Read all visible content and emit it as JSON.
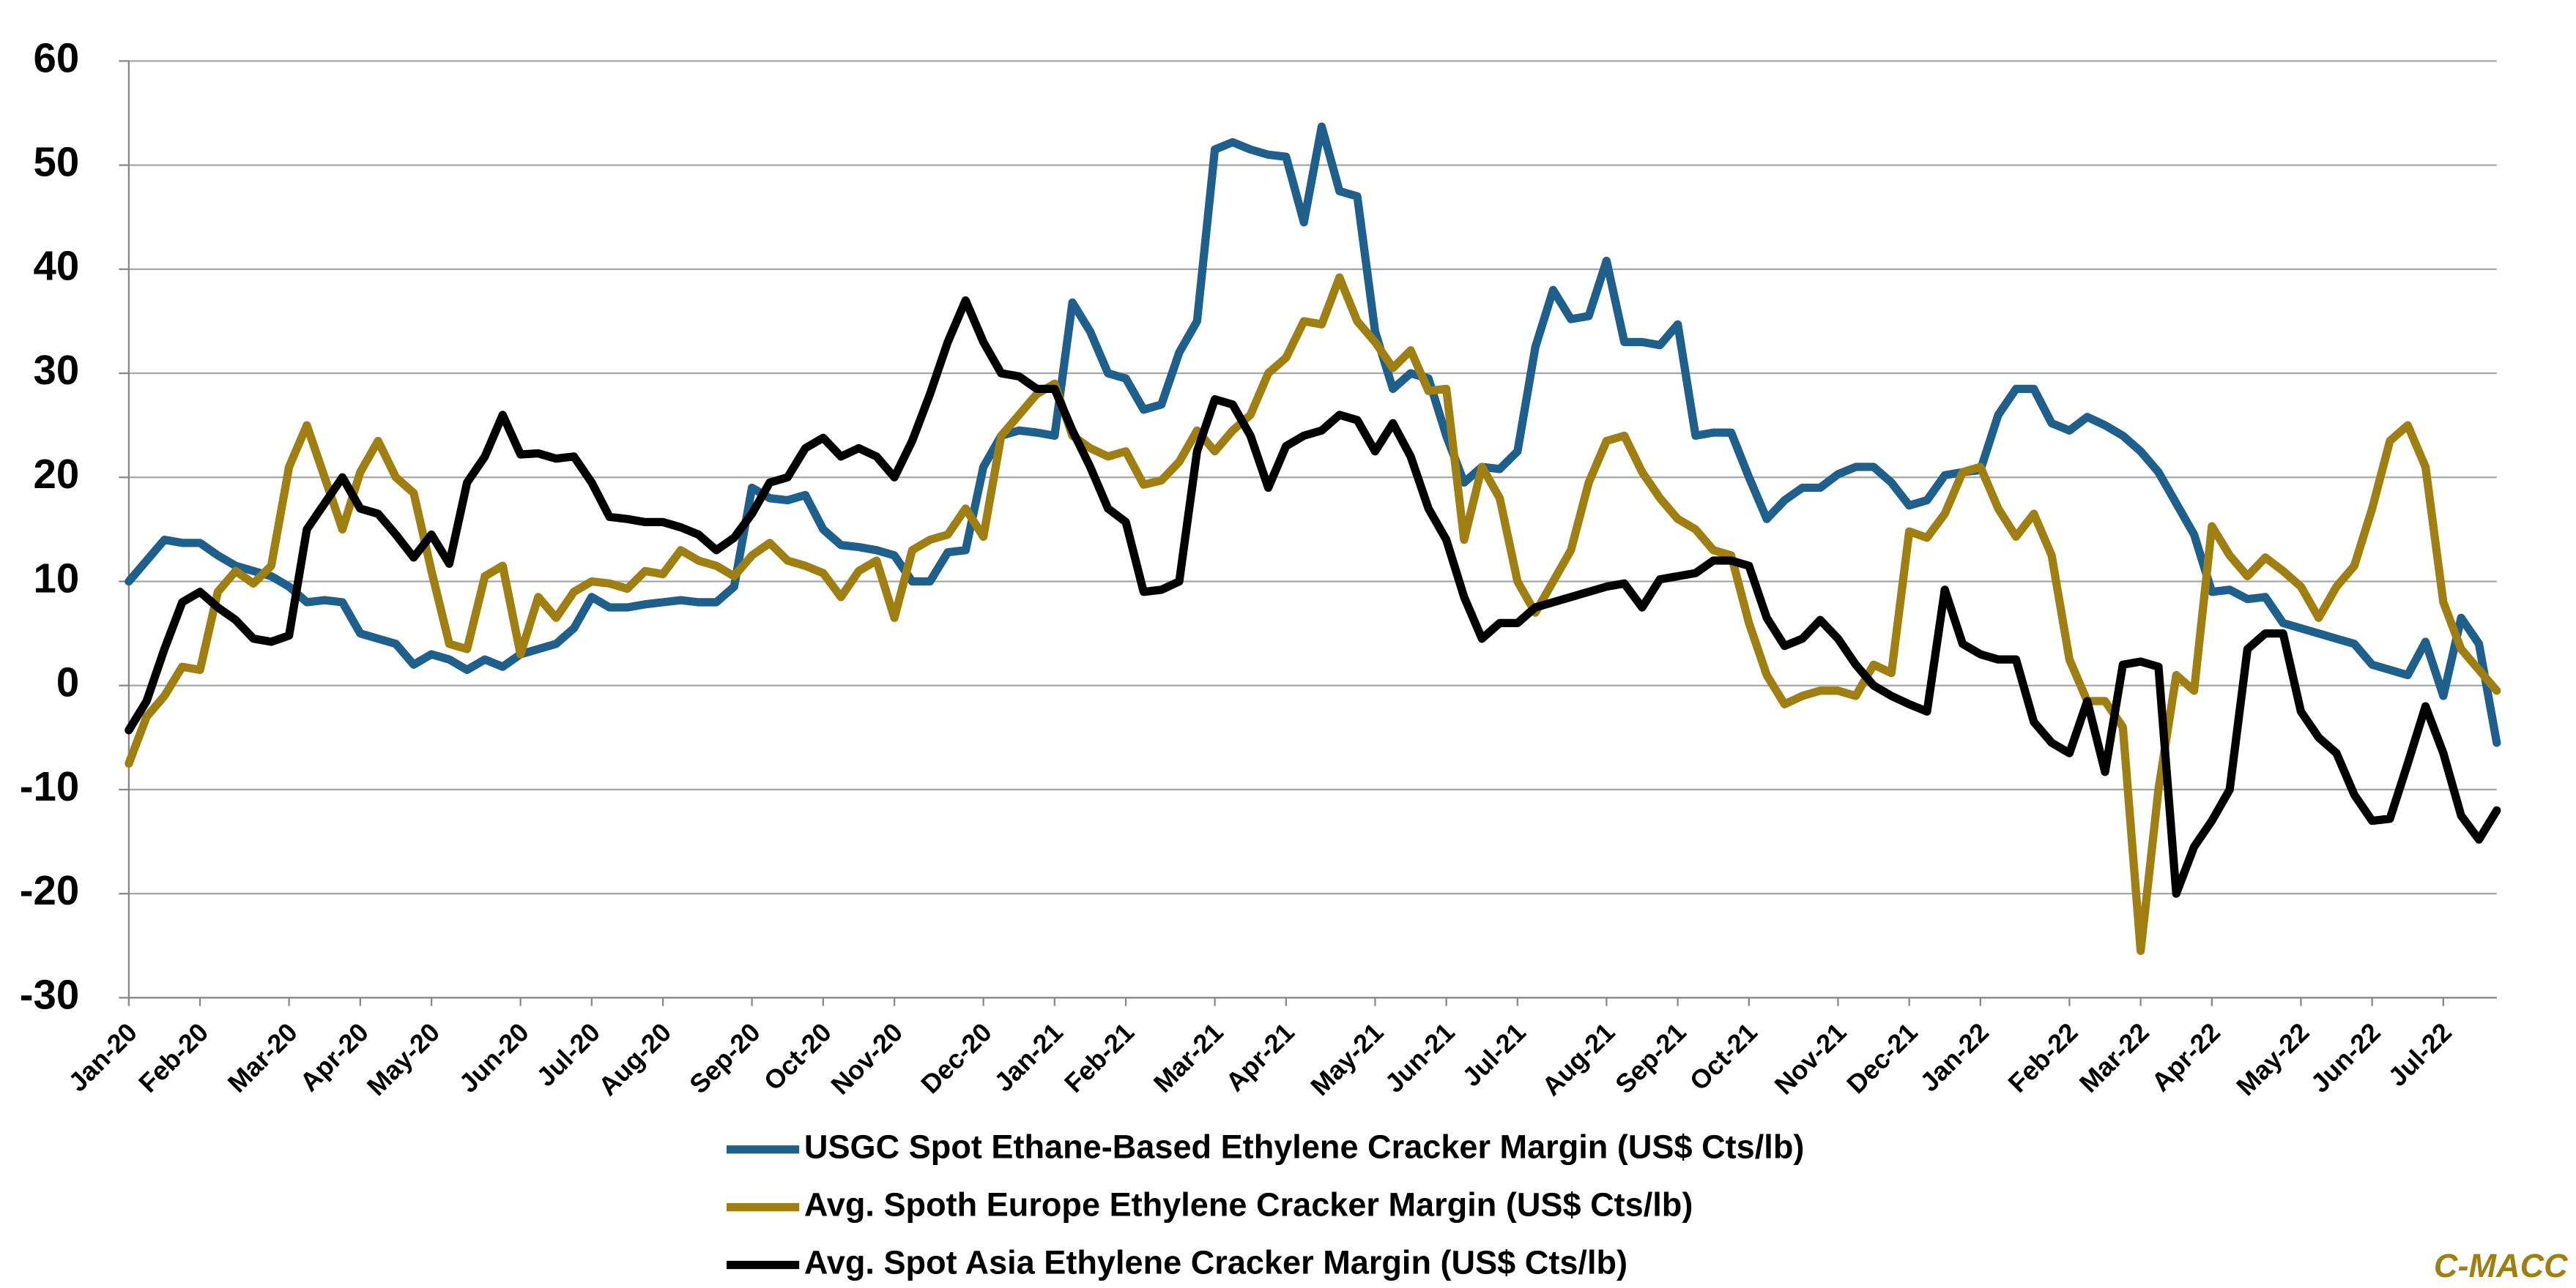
{
  "chart_data": {
    "type": "line",
    "categories": [
      "Jan-20",
      null,
      null,
      null,
      "Feb-20",
      null,
      null,
      null,
      null,
      "Mar-20",
      null,
      null,
      null,
      "Apr-20",
      null,
      null,
      null,
      "May-20",
      null,
      null,
      null,
      null,
      "Jun-20",
      null,
      null,
      null,
      "Jul-20",
      null,
      null,
      null,
      "Aug-20",
      null,
      null,
      null,
      null,
      "Sep-20",
      null,
      null,
      null,
      "Oct-20",
      null,
      null,
      null,
      "Nov-20",
      null,
      null,
      null,
      null,
      "Dec-20",
      null,
      null,
      null,
      "Jan-21",
      null,
      null,
      null,
      "Feb-21",
      null,
      null,
      null,
      null,
      "Mar-21",
      null,
      null,
      null,
      "Apr-21",
      null,
      null,
      null,
      null,
      "May-21",
      null,
      null,
      null,
      "Jun-21",
      null,
      null,
      null,
      "Jul-21",
      null,
      null,
      null,
      null,
      "Aug-21",
      null,
      null,
      null,
      "Sep-21",
      null,
      null,
      null,
      "Oct-21",
      null,
      null,
      null,
      null,
      "Nov-21",
      null,
      null,
      null,
      "Dec-21",
      null,
      null,
      null,
      "Jan-22",
      null,
      null,
      null,
      null,
      "Feb-22",
      null,
      null,
      null,
      "Mar-22",
      null,
      null,
      null,
      "Apr-22",
      null,
      null,
      null,
      null,
      "May-22",
      null,
      null,
      null,
      "Jun-22",
      null,
      null,
      null,
      "Jul-22",
      null,
      null,
      null
    ],
    "series": [
      {
        "name": "USGC Spot Ethane-Based Ethylene Cracker Margin (US$ Cts/lb)",
        "color": "#1f5f8b",
        "values": [
          10,
          12,
          14,
          13.7,
          13.7,
          12.5,
          11.5,
          11,
          10.5,
          9.5,
          8,
          8.2,
          8,
          5,
          4.5,
          4,
          2,
          3,
          2.5,
          1.5,
          2.5,
          1.8,
          3,
          3.5,
          4,
          5.5,
          8.5,
          7.5,
          7.5,
          7.8,
          8,
          8.2,
          8,
          8,
          9.5,
          19,
          18,
          17.8,
          18.3,
          15,
          13.5,
          13.3,
          13,
          12.5,
          10,
          10,
          12.8,
          13,
          21,
          24,
          24.5,
          24.3,
          24,
          36.8,
          34,
          30,
          29.5,
          26.5,
          27,
          32,
          35,
          51.5,
          52.2,
          51.5,
          51,
          50.8,
          44.5,
          53.7,
          47.5,
          47,
          34,
          28.5,
          30,
          29.5,
          24,
          19.5,
          21,
          20.8,
          22.5,
          32.5,
          38,
          35.2,
          35.5,
          40.8,
          33,
          33,
          32.7,
          34.7,
          24,
          24.3,
          24.3,
          20,
          16,
          17.8,
          19,
          19,
          20.3,
          21,
          21,
          19.5,
          17.3,
          17.8,
          20.2,
          20.5,
          20.7,
          26,
          28.5,
          28.5,
          25.2,
          24.5,
          25.8,
          25,
          24,
          22.5,
          20.5,
          17.5,
          14.5,
          9,
          9.2,
          8.3,
          8.5,
          6,
          5.5,
          5,
          4.5,
          4,
          2,
          1.5,
          1,
          4.2,
          -1,
          6.5,
          4,
          -5.5
        ]
      },
      {
        "name": "Avg. Spoth Europe Ethylene Cracker Margin (US$ Cts/lb)",
        "color": "#a07f12",
        "values": [
          -7.5,
          -3,
          -1,
          1.8,
          1.5,
          9,
          11,
          9.8,
          11.5,
          21,
          25,
          20,
          15,
          20.5,
          23.5,
          20,
          18.5,
          11,
          4,
          3.5,
          10.5,
          11.5,
          3,
          8.5,
          6.5,
          9,
          10,
          9.8,
          9.3,
          11,
          10.7,
          13,
          12,
          11.5,
          10.5,
          12.5,
          13.7,
          12,
          11.5,
          10.8,
          8.5,
          11,
          12,
          6.5,
          13,
          14,
          14.5,
          17,
          14.3,
          24,
          26,
          28,
          29,
          24,
          22.8,
          22,
          22.5,
          19.3,
          19.7,
          21.5,
          24.5,
          22.5,
          24.5,
          26,
          30,
          31.5,
          35,
          34.7,
          39.2,
          35,
          33,
          30.5,
          32.2,
          28.3,
          28.5,
          14,
          21,
          18,
          10,
          7,
          10,
          13,
          19.5,
          23.5,
          24,
          20.5,
          18,
          16,
          15,
          13,
          12.5,
          6,
          1,
          -1.8,
          -1,
          -0.5,
          -0.5,
          -1,
          2,
          1.2,
          14.8,
          14.2,
          16.5,
          20.5,
          21,
          17,
          14.3,
          16.5,
          12.5,
          2.5,
          -1.5,
          -1.5,
          -4,
          -25.5,
          -10,
          1,
          -0.5,
          15.3,
          12.5,
          10.5,
          12.3,
          11,
          9.5,
          6.5,
          9.5,
          11.5,
          17,
          23.5,
          25,
          21,
          8,
          3.5,
          1.5,
          -0.5
        ]
      },
      {
        "name": "Avg. Spot Asia Ethylene Cracker Margin (US$ Cts/lb)",
        "color": "#000000",
        "values": [
          -4.3,
          -1.5,
          3.5,
          8,
          9,
          7.5,
          6.3,
          4.5,
          4.2,
          4.8,
          15,
          17.5,
          20,
          17,
          16.5,
          14.5,
          12.3,
          14.5,
          11.7,
          19.5,
          22,
          26,
          22.2,
          22.3,
          21.8,
          22,
          19.5,
          16.2,
          16,
          15.7,
          15.7,
          15.2,
          14.5,
          13,
          14.2,
          16.5,
          19.5,
          20,
          22.8,
          23.8,
          22,
          22.8,
          22,
          20,
          23.5,
          28,
          33,
          37,
          33,
          30,
          29.7,
          28.5,
          28.5,
          24.5,
          21,
          17,
          15.7,
          9,
          9.2,
          10,
          22.5,
          27.5,
          27,
          24,
          19,
          23,
          24,
          24.5,
          26,
          25.5,
          22.5,
          25.2,
          22,
          17,
          14,
          8.5,
          4.5,
          6,
          6,
          7.5,
          8,
          8.5,
          9,
          9.5,
          9.8,
          7.5,
          10.2,
          10.5,
          10.8,
          12,
          12,
          11.5,
          6.5,
          3.8,
          4.5,
          6.3,
          4.5,
          2,
          0,
          -1,
          -1.8,
          -2.5,
          9.2,
          4,
          3,
          2.5,
          2.5,
          -3.5,
          -5.5,
          -6.5,
          -1.5,
          -8.3,
          2,
          2.3,
          1.8,
          -20,
          -15.5,
          -13,
          -10,
          3.5,
          5,
          5,
          -2.5,
          -5,
          -6.5,
          -10.5,
          -13,
          -12.8,
          -7.5,
          -2,
          -6.5,
          -12.5,
          -14.8,
          -12
        ]
      }
    ],
    "ylim": [
      -30,
      60
    ],
    "yticks": [
      -30,
      -20,
      -10,
      0,
      10,
      20,
      30,
      40,
      50,
      60
    ],
    "grid": true,
    "legend": "bottom",
    "source": "C-MACC"
  }
}
